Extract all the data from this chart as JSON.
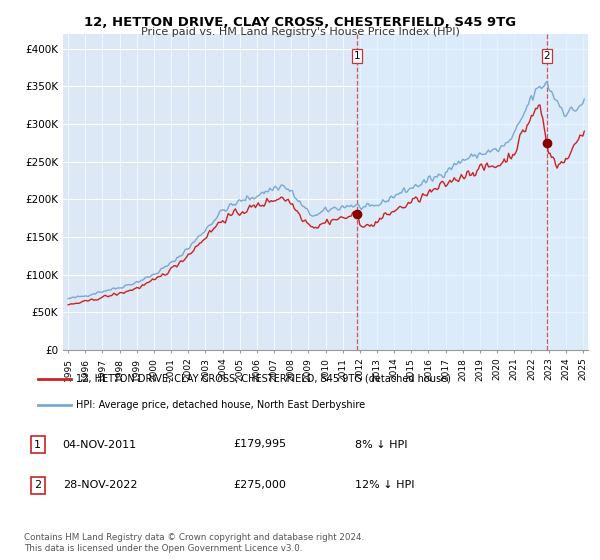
{
  "title": "12, HETTON DRIVE, CLAY CROSS, CHESTERFIELD, S45 9TG",
  "subtitle": "Price paid vs. HM Land Registry's House Price Index (HPI)",
  "ylabel_ticks": [
    "£0",
    "£50K",
    "£100K",
    "£150K",
    "£200K",
    "£250K",
    "£300K",
    "£350K",
    "£400K"
  ],
  "ylabel_values": [
    0,
    50000,
    100000,
    150000,
    200000,
    250000,
    300000,
    350000,
    400000
  ],
  "ylim": [
    0,
    420000
  ],
  "xlim_start": 1994.7,
  "xlim_end": 2025.3,
  "x_ticks": [
    1995,
    1996,
    1997,
    1998,
    1999,
    2000,
    2001,
    2002,
    2003,
    2004,
    2005,
    2006,
    2007,
    2008,
    2009,
    2010,
    2011,
    2012,
    2013,
    2014,
    2015,
    2016,
    2017,
    2018,
    2019,
    2020,
    2021,
    2022,
    2023,
    2024,
    2025
  ],
  "hpi_line_color": "#7aa8d4",
  "property_line_color": "#cc2222",
  "dashed_line_color": "#cc3333",
  "shade_color": "#ddeeff",
  "background_color": "#dce8f5",
  "legend_label_property": "12, HETTON DRIVE, CLAY CROSS, CHESTERFIELD, S45 9TG (detached house)",
  "legend_label_hpi": "HPI: Average price, detached house, North East Derbyshire",
  "transaction1_num": "1",
  "transaction1_date": "04-NOV-2011",
  "transaction1_price": "£179,995",
  "transaction1_hpi": "8% ↓ HPI",
  "transaction2_num": "2",
  "transaction2_date": "28-NOV-2022",
  "transaction2_price": "£275,000",
  "transaction2_hpi": "12% ↓ HPI",
  "footer": "Contains HM Land Registry data © Crown copyright and database right 2024.\nThis data is licensed under the Open Government Licence v3.0.",
  "transaction1_x": 2011.83,
  "transaction1_y": 179995,
  "transaction2_x": 2022.9,
  "transaction2_y": 275000
}
